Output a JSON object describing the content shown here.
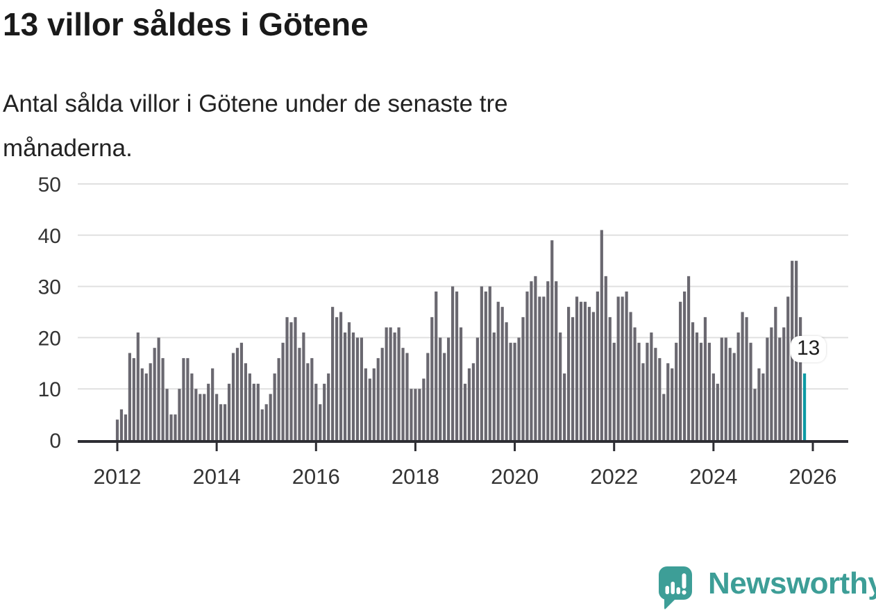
{
  "title": "13 villor såldes i Götene",
  "subtitle": "Antal sålda villor i Götene under de senaste tre månaderna.",
  "subtitle_lines": [
    "Antal sålda villor i Götene under de senaste tre",
    "månaderna."
  ],
  "annotation": {
    "label": "13"
  },
  "branding": {
    "name": "Newsworthy",
    "icon": "newsworthy-chart-bubble",
    "color": "#3d9e97"
  },
  "colors": {
    "bar": "#6a6870",
    "highlight": "#0c9aa4",
    "gridline": "#e0e0e0",
    "axis": "#2d2d33",
    "tick_text": "#333333",
    "title_text": "#1a1a1a"
  },
  "chart_data": {
    "type": "bar",
    "title": "13 villor såldes i Götene",
    "subtitle": "Antal sålda villor i Götene under de senaste tre månaderna.",
    "xlabel": "",
    "ylabel": "",
    "x_start": "2012-01",
    "x_freq": "monthly",
    "x_tick_labels": [
      "2012",
      "2014",
      "2016",
      "2018",
      "2020",
      "2022",
      "2024",
      "2026"
    ],
    "x_tick_month_index": [
      0,
      24,
      48,
      72,
      96,
      120,
      144,
      168
    ],
    "y_ticks": [
      0,
      10,
      20,
      30,
      40,
      50
    ],
    "ylim": [
      0,
      50
    ],
    "grid": true,
    "legend": false,
    "highlight_last": true,
    "last_value_label": "13",
    "values": [
      4,
      6,
      5,
      17,
      16,
      21,
      14,
      13,
      15,
      18,
      20,
      16,
      10,
      5,
      5,
      10,
      16,
      16,
      13,
      10,
      9,
      9,
      11,
      14,
      9,
      7,
      7,
      11,
      17,
      18,
      19,
      15,
      13,
      11,
      11,
      6,
      7,
      9,
      13,
      16,
      19,
      24,
      23,
      24,
      18,
      21,
      15,
      16,
      11,
      7,
      11,
      13,
      26,
      24,
      25,
      21,
      23,
      21,
      20,
      20,
      14,
      12,
      14,
      16,
      18,
      22,
      22,
      21,
      22,
      18,
      17,
      10,
      10,
      10,
      12,
      17,
      24,
      29,
      20,
      17,
      20,
      30,
      29,
      22,
      11,
      14,
      15,
      20,
      30,
      29,
      30,
      21,
      27,
      26,
      23,
      19,
      19,
      20,
      24,
      29,
      31,
      32,
      28,
      28,
      31,
      39,
      31,
      21,
      13,
      26,
      24,
      28,
      27,
      27,
      26,
      25,
      29,
      41,
      32,
      24,
      19,
      28,
      28,
      29,
      25,
      22,
      19,
      15,
      19,
      21,
      18,
      16,
      9,
      15,
      14,
      19,
      27,
      29,
      32,
      23,
      21,
      19,
      24,
      19,
      13,
      11,
      20,
      20,
      18,
      17,
      21,
      25,
      24,
      19,
      10,
      14,
      13,
      20,
      22,
      26,
      20,
      22,
      28,
      35,
      35,
      24,
      13
    ]
  }
}
